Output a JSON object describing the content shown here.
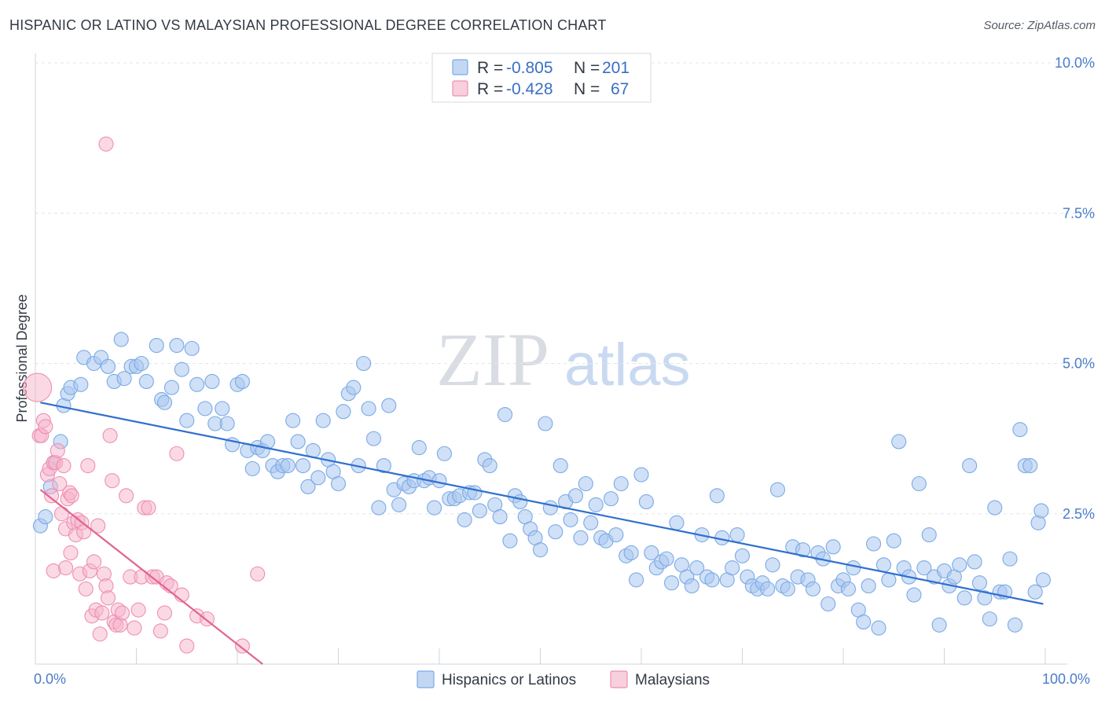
{
  "header": {
    "title": "HISPANIC OR LATINO VS MALAYSIAN PROFESSIONAL DEGREE CORRELATION CHART",
    "source": "Source: ZipAtlas.com"
  },
  "watermark": {
    "zip": "ZIP",
    "atlas": "atlas"
  },
  "legend": {
    "r_label": "R = ",
    "n_label": "N = ",
    "series": [
      {
        "name": "Hispanics or Latinos",
        "r": "-0.805",
        "n": "201",
        "color": "#7aaae6"
      },
      {
        "name": "Malaysians",
        "r": "-0.428",
        "n": "67",
        "color": "#ef8fb0"
      }
    ]
  },
  "chart_data": {
    "type": "scatter",
    "title": "HISPANIC OR LATINO VS MALAYSIAN PROFESSIONAL DEGREE CORRELATION CHART",
    "xlabel": "",
    "ylabel": "Professional Degree",
    "xlim": [
      0,
      100
    ],
    "ylim": [
      0,
      10
    ],
    "x_tick_labels": [
      "0.0%",
      "100.0%"
    ],
    "y_ticks": [
      2.5,
      5.0,
      7.5,
      10.0
    ],
    "y_tick_labels": [
      "2.5%",
      "5.0%",
      "7.5%",
      "10.0%"
    ],
    "grid": true,
    "series": [
      {
        "name": "Hispanics or Latinos",
        "color": "#7aaae6",
        "line_color": "#2f6fce",
        "trend": {
          "x": [
            0.5,
            99.8
          ],
          "y": [
            4.35,
            1.0
          ]
        },
        "points": [
          [
            0.5,
            2.3
          ],
          [
            1.0,
            2.45
          ],
          [
            1.5,
            2.95
          ],
          [
            1.8,
            3.35
          ],
          [
            2.5,
            3.7
          ],
          [
            2.8,
            4.3
          ],
          [
            3.2,
            4.5
          ],
          [
            3.5,
            4.6
          ],
          [
            4.5,
            4.65
          ],
          [
            4.8,
            5.1
          ],
          [
            5.8,
            5.0
          ],
          [
            6.5,
            5.1
          ],
          [
            7.2,
            4.95
          ],
          [
            7.8,
            4.7
          ],
          [
            8.5,
            5.4
          ],
          [
            8.8,
            4.75
          ],
          [
            9.5,
            4.95
          ],
          [
            10.0,
            4.95
          ],
          [
            10.5,
            5.0
          ],
          [
            11.0,
            4.7
          ],
          [
            12.0,
            5.3
          ],
          [
            12.5,
            4.4
          ],
          [
            12.8,
            4.35
          ],
          [
            13.5,
            4.6
          ],
          [
            14.0,
            5.3
          ],
          [
            14.5,
            4.9
          ],
          [
            15.0,
            4.05
          ],
          [
            15.5,
            5.25
          ],
          [
            16.0,
            4.65
          ],
          [
            16.8,
            4.25
          ],
          [
            17.5,
            4.7
          ],
          [
            17.8,
            4.0
          ],
          [
            18.5,
            4.25
          ],
          [
            19.0,
            4.0
          ],
          [
            19.5,
            3.65
          ],
          [
            20.0,
            4.65
          ],
          [
            20.5,
            4.7
          ],
          [
            21.0,
            3.55
          ],
          [
            21.5,
            3.25
          ],
          [
            22.0,
            3.6
          ],
          [
            22.5,
            3.55
          ],
          [
            23.0,
            3.7
          ],
          [
            23.5,
            3.3
          ],
          [
            24.0,
            3.2
          ],
          [
            24.5,
            3.3
          ],
          [
            25.0,
            3.3
          ],
          [
            25.5,
            4.05
          ],
          [
            26.0,
            3.7
          ],
          [
            26.5,
            3.3
          ],
          [
            27.0,
            2.95
          ],
          [
            27.5,
            3.55
          ],
          [
            28.0,
            3.1
          ],
          [
            28.5,
            4.05
          ],
          [
            29.0,
            3.4
          ],
          [
            29.5,
            3.2
          ],
          [
            30.0,
            3.0
          ],
          [
            30.5,
            4.2
          ],
          [
            31.0,
            4.5
          ],
          [
            31.5,
            4.6
          ],
          [
            32.0,
            3.3
          ],
          [
            32.5,
            5.0
          ],
          [
            33.0,
            4.25
          ],
          [
            33.5,
            3.75
          ],
          [
            34.0,
            2.6
          ],
          [
            34.5,
            3.3
          ],
          [
            35.0,
            4.3
          ],
          [
            35.5,
            2.9
          ],
          [
            36.0,
            2.65
          ],
          [
            36.5,
            3.0
          ],
          [
            37.0,
            2.95
          ],
          [
            37.5,
            3.05
          ],
          [
            38.0,
            3.6
          ],
          [
            38.5,
            3.05
          ],
          [
            39.0,
            3.1
          ],
          [
            39.5,
            2.6
          ],
          [
            40.0,
            3.05
          ],
          [
            40.5,
            3.5
          ],
          [
            41.0,
            2.75
          ],
          [
            41.5,
            2.75
          ],
          [
            42.0,
            2.8
          ],
          [
            42.5,
            2.4
          ],
          [
            43.0,
            2.85
          ],
          [
            43.5,
            2.85
          ],
          [
            44.0,
            2.55
          ],
          [
            44.5,
            3.4
          ],
          [
            45.0,
            3.3
          ],
          [
            45.5,
            2.65
          ],
          [
            46.0,
            2.45
          ],
          [
            46.5,
            4.15
          ],
          [
            47.0,
            2.05
          ],
          [
            47.5,
            2.8
          ],
          [
            48.0,
            2.7
          ],
          [
            48.5,
            2.45
          ],
          [
            49.0,
            2.25
          ],
          [
            49.5,
            2.1
          ],
          [
            50.0,
            1.9
          ],
          [
            50.5,
            4.0
          ],
          [
            51.0,
            2.6
          ],
          [
            51.5,
            2.2
          ],
          [
            52.0,
            3.3
          ],
          [
            52.5,
            2.7
          ],
          [
            53.0,
            2.4
          ],
          [
            53.5,
            2.8
          ],
          [
            54.0,
            2.1
          ],
          [
            54.5,
            3.0
          ],
          [
            55.0,
            2.35
          ],
          [
            55.5,
            2.65
          ],
          [
            56.0,
            2.1
          ],
          [
            56.5,
            2.05
          ],
          [
            57.0,
            2.75
          ],
          [
            57.5,
            2.15
          ],
          [
            58.0,
            3.0
          ],
          [
            58.5,
            1.8
          ],
          [
            59.0,
            1.85
          ],
          [
            59.5,
            1.4
          ],
          [
            60.0,
            3.15
          ],
          [
            60.5,
            2.7
          ],
          [
            61.0,
            1.85
          ],
          [
            61.5,
            1.6
          ],
          [
            62.0,
            1.7
          ],
          [
            62.5,
            1.75
          ],
          [
            63.0,
            1.35
          ],
          [
            63.5,
            2.35
          ],
          [
            64.0,
            1.65
          ],
          [
            64.5,
            1.45
          ],
          [
            65.0,
            1.3
          ],
          [
            65.5,
            1.6
          ],
          [
            66.0,
            2.15
          ],
          [
            66.5,
            1.45
          ],
          [
            67.0,
            1.4
          ],
          [
            67.5,
            2.8
          ],
          [
            68.0,
            2.1
          ],
          [
            68.5,
            1.4
          ],
          [
            69.0,
            1.6
          ],
          [
            69.5,
            2.15
          ],
          [
            70.0,
            1.8
          ],
          [
            70.5,
            1.45
          ],
          [
            71.0,
            1.3
          ],
          [
            71.5,
            1.25
          ],
          [
            72.0,
            1.35
          ],
          [
            72.5,
            1.25
          ],
          [
            73.0,
            1.65
          ],
          [
            73.5,
            2.9
          ],
          [
            74.0,
            1.3
          ],
          [
            74.5,
            1.25
          ],
          [
            75.0,
            1.95
          ],
          [
            75.5,
            1.45
          ],
          [
            76.0,
            1.9
          ],
          [
            76.5,
            1.4
          ],
          [
            77.0,
            1.25
          ],
          [
            77.5,
            1.85
          ],
          [
            78.0,
            1.75
          ],
          [
            78.5,
            1.0
          ],
          [
            79.0,
            1.95
          ],
          [
            79.5,
            1.3
          ],
          [
            80.0,
            1.4
          ],
          [
            80.5,
            1.25
          ],
          [
            81.0,
            1.6
          ],
          [
            81.5,
            0.9
          ],
          [
            82.0,
            0.7
          ],
          [
            82.5,
            1.3
          ],
          [
            83.0,
            2.0
          ],
          [
            83.5,
            0.6
          ],
          [
            84.0,
            1.65
          ],
          [
            84.5,
            1.4
          ],
          [
            85.0,
            2.05
          ],
          [
            85.5,
            3.7
          ],
          [
            86.0,
            1.6
          ],
          [
            86.5,
            1.45
          ],
          [
            87.0,
            1.15
          ],
          [
            87.5,
            3.0
          ],
          [
            88.0,
            1.6
          ],
          [
            88.5,
            2.15
          ],
          [
            89.0,
            1.45
          ],
          [
            89.5,
            0.65
          ],
          [
            90.0,
            1.55
          ],
          [
            90.5,
            1.3
          ],
          [
            91.0,
            1.45
          ],
          [
            91.5,
            1.65
          ],
          [
            92.0,
            1.1
          ],
          [
            92.5,
            3.3
          ],
          [
            93.0,
            1.7
          ],
          [
            93.5,
            1.35
          ],
          [
            94.0,
            1.1
          ],
          [
            94.5,
            0.75
          ],
          [
            95.0,
            2.6
          ],
          [
            95.5,
            1.2
          ],
          [
            96.0,
            1.2
          ],
          [
            96.5,
            1.75
          ],
          [
            97.0,
            0.65
          ],
          [
            97.5,
            3.9
          ],
          [
            98.0,
            3.3
          ],
          [
            98.5,
            3.3
          ],
          [
            99.0,
            1.2
          ],
          [
            99.3,
            2.35
          ],
          [
            99.6,
            2.55
          ],
          [
            99.8,
            1.4
          ]
        ]
      },
      {
        "name": "Malaysians",
        "color": "#ef8fb0",
        "line_color": "#e2648f",
        "trend": {
          "x": [
            0.5,
            22.5
          ],
          "y": [
            2.9,
            0.0
          ]
        },
        "points": [
          [
            0.2,
            4.6
          ],
          [
            0.4,
            3.8
          ],
          [
            0.6,
            3.8
          ],
          [
            0.8,
            4.05
          ],
          [
            1.0,
            3.95
          ],
          [
            1.2,
            3.15
          ],
          [
            1.4,
            3.25
          ],
          [
            1.6,
            2.8
          ],
          [
            1.8,
            3.35
          ],
          [
            2.0,
            3.35
          ],
          [
            2.2,
            3.55
          ],
          [
            2.4,
            3.0
          ],
          [
            2.6,
            2.5
          ],
          [
            2.8,
            3.3
          ],
          [
            3.0,
            2.25
          ],
          [
            3.2,
            2.75
          ],
          [
            3.4,
            2.85
          ],
          [
            3.5,
            1.85
          ],
          [
            3.6,
            2.8
          ],
          [
            3.8,
            2.35
          ],
          [
            4.0,
            2.15
          ],
          [
            4.2,
            2.4
          ],
          [
            4.4,
            1.5
          ],
          [
            4.6,
            2.35
          ],
          [
            4.8,
            2.2
          ],
          [
            5.0,
            1.25
          ],
          [
            5.2,
            3.3
          ],
          [
            5.4,
            1.55
          ],
          [
            5.6,
            0.8
          ],
          [
            5.8,
            1.7
          ],
          [
            6.0,
            0.9
          ],
          [
            6.2,
            2.3
          ],
          [
            6.4,
            0.5
          ],
          [
            6.6,
            0.85
          ],
          [
            6.8,
            1.5
          ],
          [
            7.0,
            1.3
          ],
          [
            7.2,
            1.1
          ],
          [
            7.4,
            3.8
          ],
          [
            7.6,
            3.05
          ],
          [
            7.8,
            0.7
          ],
          [
            8.0,
            0.65
          ],
          [
            8.2,
            0.9
          ],
          [
            8.4,
            0.65
          ],
          [
            8.6,
            0.85
          ],
          [
            9.0,
            2.8
          ],
          [
            9.4,
            1.45
          ],
          [
            9.8,
            0.6
          ],
          [
            10.2,
            0.9
          ],
          [
            10.5,
            1.45
          ],
          [
            10.8,
            2.6
          ],
          [
            11.2,
            2.6
          ],
          [
            11.6,
            1.45
          ],
          [
            12.0,
            1.45
          ],
          [
            12.4,
            0.55
          ],
          [
            12.8,
            0.85
          ],
          [
            13.0,
            1.35
          ],
          [
            13.4,
            1.3
          ],
          [
            14.0,
            3.5
          ],
          [
            14.5,
            1.15
          ],
          [
            15.0,
            0.3
          ],
          [
            16.0,
            0.8
          ],
          [
            17.0,
            0.75
          ],
          [
            20.5,
            0.3
          ],
          [
            22.0,
            1.5
          ],
          [
            7.0,
            8.65
          ],
          [
            1.8,
            1.55
          ],
          [
            3.0,
            1.6
          ]
        ]
      }
    ]
  }
}
